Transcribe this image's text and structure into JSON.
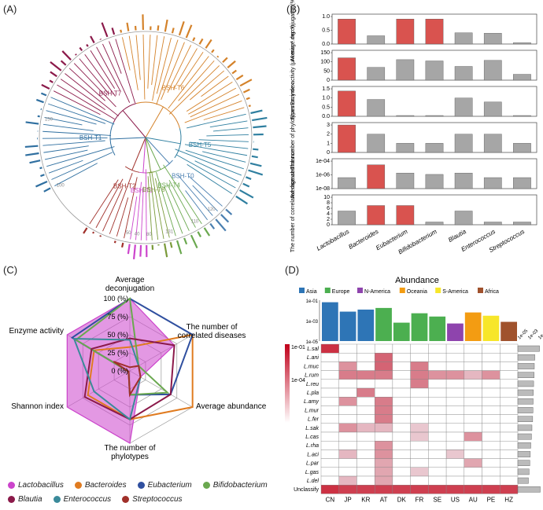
{
  "panels": {
    "a_label": "(A)",
    "b_label": "(B)",
    "c_label": "(C)",
    "d_label": "(D)"
  },
  "tree": {
    "clade_labels": [
      "BSH-T7",
      "BSH-T6",
      "BSH-T5",
      "BSH-T1",
      "BSH-T2",
      "BSH-T3",
      "BSH-T8",
      "BSH-T4",
      "BSH-T0"
    ],
    "tip_numbers": [
      "150",
      "100",
      "50",
      "40",
      "80",
      "131",
      "110",
      "120"
    ]
  },
  "chart_data": [
    {
      "type": "bar",
      "panel": "B",
      "categories": [
        "Lactobacillus",
        "Bacteroides",
        "Eubacterium",
        "Bifidobacterium",
        "Blautia",
        "Enterococcus",
        "Streptococcus"
      ],
      "highlight_color": "#d9534f",
      "base_color": "#a6a6a6",
      "rows": [
        {
          "ylabel": "Average deconjugation(%)",
          "ticks": [
            "0.0",
            "0.5",
            "1.0"
          ],
          "ylim": [
            0,
            1.1
          ],
          "values": [
            1.0,
            0.33,
            1.0,
            1.0,
            0.45,
            0.43,
            0.05
          ],
          "highlight": [
            true,
            false,
            true,
            true,
            false,
            false,
            false
          ]
        },
        {
          "ylabel": "Enzyme activity (μM.min⁻¹.mg⁻¹)",
          "ticks": [
            "0",
            "50",
            "100",
            "150"
          ],
          "ylim": [
            0,
            150
          ],
          "values": [
            122,
            70,
            112,
            105,
            75,
            108,
            32
          ],
          "highlight": [
            true,
            false,
            false,
            false,
            false,
            false,
            false
          ]
        },
        {
          "ylabel": "Shannon index",
          "ticks": [
            "0.0",
            "0.5",
            "1.0",
            "1.5"
          ],
          "ylim": [
            0,
            1.5
          ],
          "values": [
            1.38,
            0.92,
            0.02,
            0.02,
            1.0,
            0.78,
            0.02
          ],
          "highlight": [
            true,
            false,
            false,
            false,
            false,
            false,
            false
          ]
        },
        {
          "ylabel": "The number of phylotypes",
          "ticks": [
            "0",
            "1",
            "2",
            "3"
          ],
          "ylim": [
            0,
            3
          ],
          "values": [
            3,
            2,
            1,
            1,
            2,
            2,
            1
          ],
          "highlight": [
            true,
            false,
            false,
            false,
            false,
            false,
            false
          ]
        },
        {
          "ylabel": "Average abundance",
          "ticks": [
            "1e-08",
            "1e-06",
            "1e-04"
          ],
          "ylim": [
            0,
            3
          ],
          "values": [
            1.2,
            2.6,
            1.7,
            1.55,
            1.7,
            1.2,
            1.2
          ],
          "highlight": [
            false,
            true,
            false,
            false,
            false,
            false,
            false
          ]
        },
        {
          "ylabel": "The number of correlated diseases",
          "ticks": [
            "0",
            "2",
            "4",
            "6",
            "8",
            "10"
          ],
          "ylim": [
            0,
            10
          ],
          "values": [
            5,
            7,
            7,
            1,
            5,
            1,
            1
          ],
          "highlight": [
            false,
            true,
            true,
            false,
            false,
            false,
            false
          ]
        }
      ]
    },
    {
      "type": "radar",
      "panel": "C",
      "axes": [
        "Average deconjugation",
        "The number of correlated diseases",
        "Average abundance",
        "The number of phylotypes",
        "Shannon index",
        "Enzyme activity"
      ],
      "ring_labels": [
        "100 (%)",
        "75 (%)",
        "50 (%)",
        "25 (%)",
        "0 (%)"
      ],
      "series": [
        {
          "name": "Lactobacillus",
          "color": "#cc44cc",
          "values": [
            100,
            71,
            17,
            100,
            100,
            100
          ]
        },
        {
          "name": "Bacteroides",
          "color": "#e07b20",
          "values": [
            33,
            100,
            100,
            67,
            67,
            57
          ]
        },
        {
          "name": "Eubacterium",
          "color": "#2f4f9f",
          "values": [
            100,
            100,
            65,
            33,
            2,
            92
          ]
        },
        {
          "name": "Bifidobacterium",
          "color": "#6aa84f",
          "values": [
            100,
            14,
            60,
            33,
            2,
            86
          ]
        },
        {
          "name": "Blautia",
          "color": "#8b1a4a",
          "values": [
            45,
            71,
            65,
            67,
            72,
            61
          ]
        },
        {
          "name": "Enterococcus",
          "color": "#3a8a9a",
          "values": [
            43,
            14,
            17,
            67,
            57,
            89
          ]
        },
        {
          "name": "Streptococcus",
          "color": "#a0302a",
          "values": [
            5,
            14,
            17,
            33,
            2,
            26
          ]
        }
      ]
    },
    {
      "type": "heatmap",
      "panel": "D",
      "title": "Abundance",
      "regions": [
        {
          "name": "Asia",
          "color": "#2e75b6"
        },
        {
          "name": "Europe",
          "color": "#4caf50"
        },
        {
          "name": "N-America",
          "color": "#8e44ad"
        },
        {
          "name": "Oceania",
          "color": "#f39c12"
        },
        {
          "name": "S-America",
          "color": "#f7e62a"
        },
        {
          "name": "Africa",
          "color": "#a0522d"
        }
      ],
      "countries": [
        "CN",
        "JP",
        "KR",
        "AT",
        "DK",
        "FR",
        "SE",
        "US",
        "AU",
        "PE",
        "HZ"
      ],
      "country_region": [
        0,
        0,
        0,
        1,
        1,
        1,
        1,
        2,
        3,
        4,
        5
      ],
      "top_ticks": [
        "1e-01",
        "1e-03",
        "1e-05"
      ],
      "top_values": [
        0.95,
        0.72,
        0.77,
        0.81,
        0.45,
        0.68,
        0.6,
        0.43,
        0.7,
        0.62,
        0.47
      ],
      "colorbar_ticks": [
        "1e-01",
        "1e-04"
      ],
      "species": [
        "L.sal",
        "L.ani",
        "L.muc",
        "L.rum",
        "L.reu",
        "L.pla",
        "L.amy",
        "L.mur",
        "L.fer",
        "L.sak",
        "L.cas",
        "L.rha",
        "L.aci",
        "L.par",
        "L.gas",
        "L.del",
        "Unclassify"
      ],
      "matrix": [
        [
          0.9,
          0,
          0,
          0,
          0,
          0,
          0,
          0,
          0,
          0,
          0
        ],
        [
          0,
          0,
          0,
          0.7,
          0,
          0,
          0,
          0,
          0,
          0,
          0
        ],
        [
          0,
          0.5,
          0,
          0.7,
          0,
          0.6,
          0,
          0,
          0,
          0,
          0
        ],
        [
          0,
          0.6,
          0.6,
          0.6,
          0,
          0.6,
          0.5,
          0.5,
          0.3,
          0.5,
          0
        ],
        [
          0,
          0,
          0,
          0,
          0,
          0.6,
          0,
          0,
          0,
          0,
          0
        ],
        [
          0,
          0,
          0.6,
          0,
          0,
          0,
          0,
          0,
          0,
          0,
          0
        ],
        [
          0,
          0.5,
          0,
          0.6,
          0,
          0,
          0,
          0,
          0,
          0,
          0
        ],
        [
          0,
          0,
          0,
          0.6,
          0,
          0,
          0,
          0,
          0,
          0,
          0
        ],
        [
          0,
          0,
          0,
          0.6,
          0,
          0,
          0,
          0,
          0,
          0,
          0
        ],
        [
          0,
          0.5,
          0.3,
          0.3,
          0,
          0.2,
          0,
          0,
          0,
          0,
          0
        ],
        [
          0,
          0,
          0,
          0,
          0,
          0.2,
          0,
          0,
          0.5,
          0,
          0
        ],
        [
          0,
          0,
          0,
          0.5,
          0,
          0,
          0,
          0,
          0,
          0,
          0
        ],
        [
          0,
          0.3,
          0,
          0.5,
          0,
          0,
          0,
          0.2,
          0,
          0,
          0
        ],
        [
          0,
          0,
          0,
          0.4,
          0,
          0,
          0,
          0,
          0.4,
          0,
          0
        ],
        [
          0,
          0,
          0,
          0.4,
          0,
          0.2,
          0,
          0,
          0,
          0,
          0
        ],
        [
          0,
          0.3,
          0,
          0.4,
          0,
          0,
          0,
          0,
          0,
          0,
          0
        ],
        [
          0.9,
          0.85,
          0.85,
          0.85,
          0.85,
          0.85,
          0.85,
          0.85,
          0.85,
          0.85,
          0.85
        ]
      ],
      "side_ticks": [
        "1e-05",
        "1e-03",
        "1e-01"
      ],
      "side_values": [
        0.92,
        0.72,
        0.7,
        0.69,
        0.67,
        0.66,
        0.65,
        0.64,
        0.63,
        0.6,
        0.58,
        0.55,
        0.53,
        0.51,
        0.48,
        0.45,
        0.95
      ]
    }
  ]
}
